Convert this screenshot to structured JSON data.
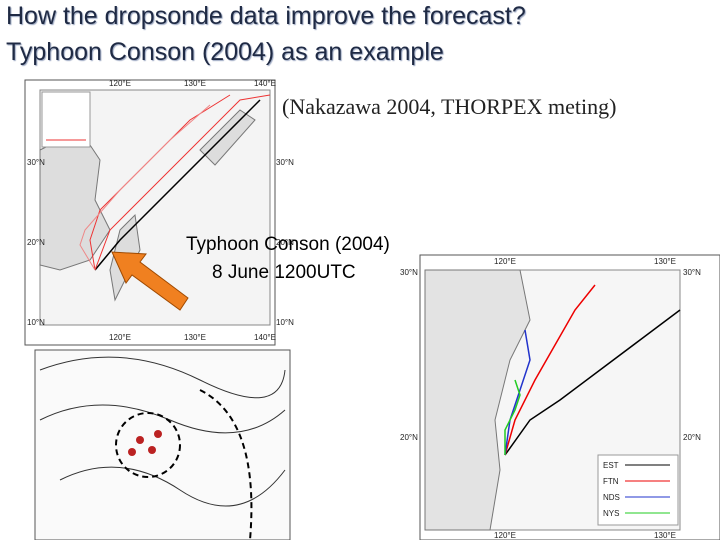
{
  "header": {
    "title_lines": [
      "How the dropsonde data improve the forecast?",
      "Typhoon Conson (2004) as an example"
    ],
    "citation": "(Nakazawa 2004, THORPEX meting)"
  },
  "annotation": {
    "lines": [
      "Typhoon Conson (2004)",
      "8 June 1200UTC"
    ]
  },
  "map_track": {
    "lon_labels": [
      "120°E",
      "130°E",
      "140°E"
    ],
    "lat_labels": [
      "30°N",
      "20°N",
      "10°N"
    ]
  },
  "map_zoom": {
    "lon_labels": [
      "120°E",
      "130°E"
    ],
    "lat_labels": [
      "30°N",
      "20°N"
    ],
    "legend": [
      "EST",
      "FTN",
      "NDS",
      "NYS"
    ]
  }
}
